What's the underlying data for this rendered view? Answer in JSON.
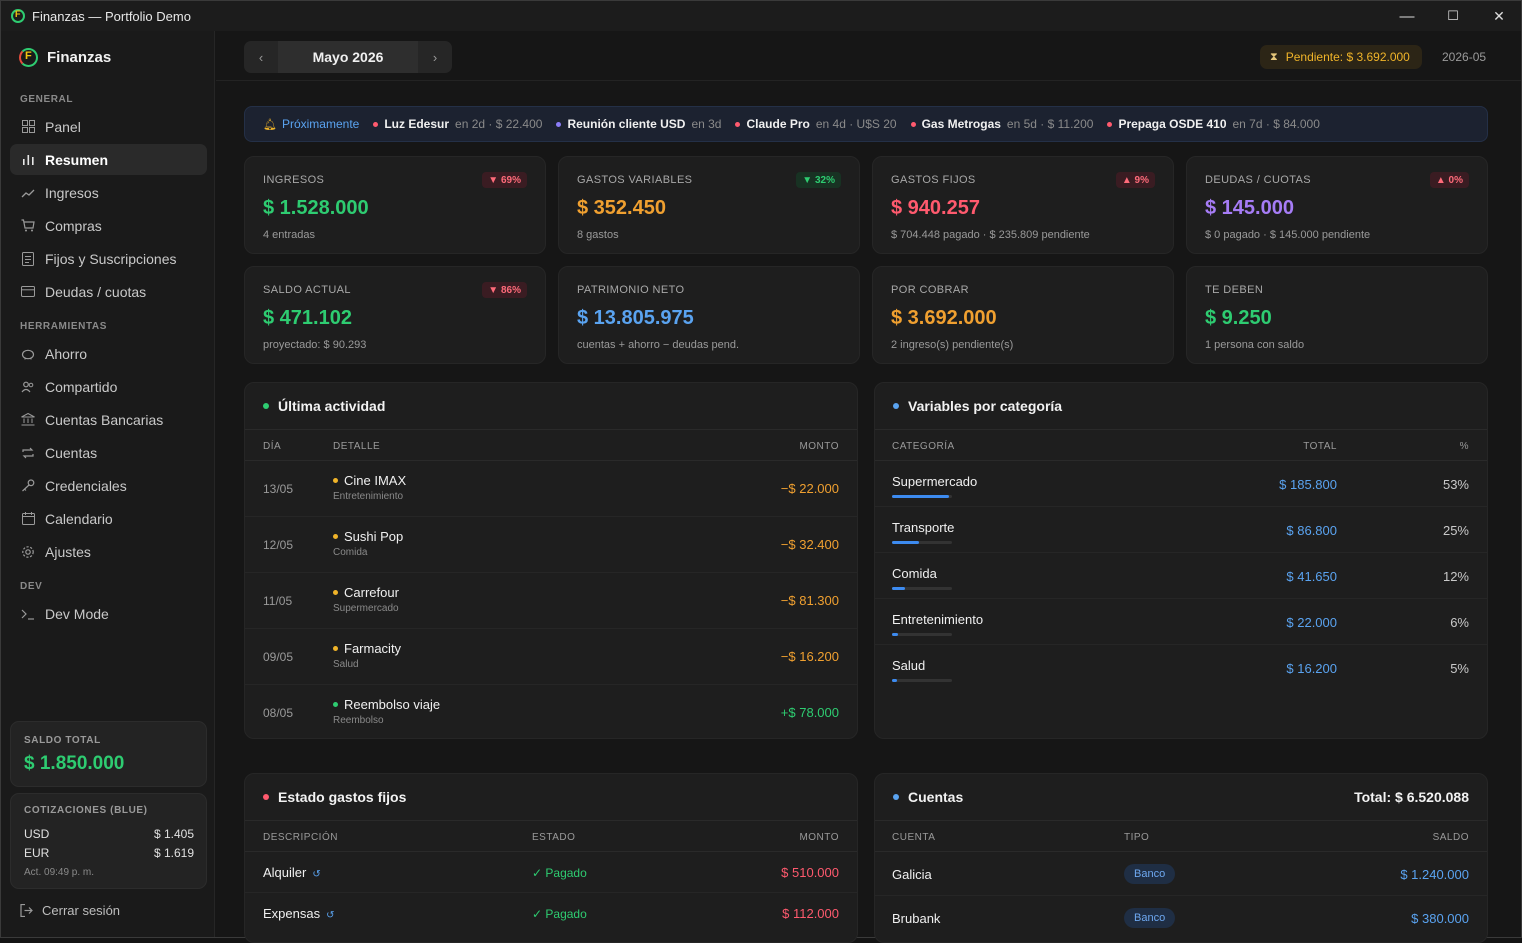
{
  "window": {
    "title": "Finanzas — Portfolio Demo",
    "min": "—",
    "max": "☐",
    "close": "✕"
  },
  "sidebar": {
    "brand": "Finanzas",
    "sections": {
      "general": "GENERAL",
      "tools": "HERRAMIENTAS",
      "dev": "DEV"
    },
    "items": [
      {
        "label": "Panel",
        "icon": "grid-icon"
      },
      {
        "label": "Resumen",
        "icon": "bar-chart-icon"
      },
      {
        "label": "Ingresos",
        "icon": "trend-up-icon"
      },
      {
        "label": "Compras",
        "icon": "cart-icon"
      },
      {
        "label": "Fijos y Suscripciones",
        "icon": "document-icon"
      },
      {
        "label": "Deudas / cuotas",
        "icon": "card-icon"
      },
      {
        "label": "Ahorro",
        "icon": "piggy-icon"
      },
      {
        "label": "Compartido",
        "icon": "users-icon"
      },
      {
        "label": "Cuentas Bancarias",
        "icon": "bank-icon"
      },
      {
        "label": "Cuentas",
        "icon": "repeat-icon"
      },
      {
        "label": "Credenciales",
        "icon": "key-icon"
      },
      {
        "label": "Calendario",
        "icon": "calendar-icon"
      },
      {
        "label": "Ajustes",
        "icon": "gear-icon"
      },
      {
        "label": "Dev Mode",
        "icon": "terminal-icon"
      }
    ],
    "saldo": {
      "label": "SALDO TOTAL",
      "value": "$ 1.850.000"
    },
    "cotizaciones": {
      "label": "COTIZACIONES (BLUE)",
      "usd": {
        "code": "USD",
        "value": "$ 1.405"
      },
      "eur": {
        "code": "EUR",
        "value": "$ 1.619"
      },
      "updated": "Act. 09:49 p. m."
    },
    "logout": "Cerrar sesión"
  },
  "topbar": {
    "month": "Mayo 2026",
    "prev": "‹",
    "next": "›",
    "pending": "Pendiente: $ 3.692.000",
    "period": "2026-05"
  },
  "upcoming": {
    "title": "Próximamente",
    "items": [
      {
        "name": "Luz Edesur",
        "meta": "en 2d · $ 22.400",
        "color": "#ff5a6e"
      },
      {
        "name": "Reunión cliente USD",
        "meta": "en 3d",
        "color": "#8b7cf6"
      },
      {
        "name": "Claude Pro",
        "meta": "en 4d · U$S 20",
        "color": "#ff5a6e"
      },
      {
        "name": "Gas Metrogas",
        "meta": "en 5d · $ 11.200",
        "color": "#ff5a6e"
      },
      {
        "name": "Prepaga OSDE 410",
        "meta": "en 7d · $ 84.000",
        "color": "#ff5a6e"
      }
    ]
  },
  "kpis": [
    {
      "label": "INGRESOS",
      "value": "$ 1.528.000",
      "sub": "4 entradas",
      "badge": "▼ 69%",
      "badge_type": "red",
      "color": "#2ecc71"
    },
    {
      "label": "GASTOS VARIABLES",
      "value": "$ 352.450",
      "sub": "8 gastos",
      "badge": "▼ 32%",
      "badge_type": "green",
      "color": "#f0a030"
    },
    {
      "label": "GASTOS FIJOS",
      "value": "$ 940.257",
      "sub": "$ 704.448 pagado · $ 235.809 pendiente",
      "badge": "▲ 9%",
      "badge_type": "red",
      "color": "#ff5a6e"
    },
    {
      "label": "DEUDAS / CUOTAS",
      "value": "$ 145.000",
      "sub": "$ 0 pagado · $ 145.000 pendiente",
      "badge": "▲ 0%",
      "badge_type": "red",
      "color": "#a67cf6"
    },
    {
      "label": "SALDO ACTUAL",
      "value": "$ 471.102",
      "sub": "proyectado: $ 90.293",
      "badge": "▼ 86%",
      "badge_type": "red",
      "color": "#2ecc71"
    },
    {
      "label": "PATRIMONIO NETO",
      "value": "$ 13.805.975",
      "sub": "cuentas + ahorro − deudas pend.",
      "badge": "",
      "badge_type": "",
      "color": "#5aa3f0"
    },
    {
      "label": "POR COBRAR",
      "value": "$ 3.692.000",
      "sub": "2 ingreso(s) pendiente(s)",
      "badge": "",
      "badge_type": "",
      "color": "#f0a030"
    },
    {
      "label": "TE DEBEN",
      "value": "$ 9.250",
      "sub": "1 persona con saldo",
      "badge": "",
      "badge_type": "",
      "color": "#2ecc71"
    }
  ],
  "activity": {
    "title": "Última actividad",
    "headers": {
      "day": "DÍA",
      "detail": "DETALLE",
      "amount": "MONTO"
    },
    "rows": [
      {
        "day": "13/05",
        "name": "Cine IMAX",
        "cat": "Entretenimiento",
        "amount": "−$ 22.000",
        "type": "neg"
      },
      {
        "day": "12/05",
        "name": "Sushi Pop",
        "cat": "Comida",
        "amount": "−$ 32.400",
        "type": "neg"
      },
      {
        "day": "11/05",
        "name": "Carrefour",
        "cat": "Supermercado",
        "amount": "−$ 81.300",
        "type": "neg"
      },
      {
        "day": "09/05",
        "name": "Farmacity",
        "cat": "Salud",
        "amount": "−$ 16.200",
        "type": "neg"
      },
      {
        "day": "08/05",
        "name": "Reembolso viaje",
        "cat": "Reembolso",
        "amount": "+$ 78.000",
        "type": "pos"
      }
    ]
  },
  "categories": {
    "title": "Variables por categoría",
    "headers": {
      "cat": "CATEGORÍA",
      "total": "TOTAL",
      "pct": "%"
    },
    "rows": [
      {
        "name": "Supermercado",
        "total": "$ 185.800",
        "pct": "53%",
        "share": 0.53
      },
      {
        "name": "Transporte",
        "total": "$ 86.800",
        "pct": "25%",
        "share": 0.25
      },
      {
        "name": "Comida",
        "total": "$ 41.650",
        "pct": "12%",
        "share": 0.12
      },
      {
        "name": "Entretenimiento",
        "total": "$ 22.000",
        "pct": "6%",
        "share": 0.06
      },
      {
        "name": "Salud",
        "total": "$ 16.200",
        "pct": "5%",
        "share": 0.05
      }
    ]
  },
  "fixed": {
    "title": "Estado gastos fijos",
    "headers": {
      "desc": "DESCRIPCIÓN",
      "status": "ESTADO",
      "amount": "MONTO"
    },
    "rows": [
      {
        "desc": "Alquiler",
        "recur": "↺",
        "status": "✓ Pagado",
        "amount": "$ 510.000"
      },
      {
        "desc": "Expensas",
        "recur": "↺",
        "status": "✓ Pagado",
        "amount": "$ 112.000"
      }
    ]
  },
  "accounts": {
    "title": "Cuentas",
    "total": "Total: $ 6.520.088",
    "headers": {
      "account": "CUENTA",
      "type": "TIPO",
      "balance": "SALDO"
    },
    "rows": [
      {
        "name": "Galicia",
        "type": "Banco",
        "balance": "$ 1.240.000"
      },
      {
        "name": "Brubank",
        "type": "Banco",
        "balance": "$ 380.000"
      }
    ]
  }
}
